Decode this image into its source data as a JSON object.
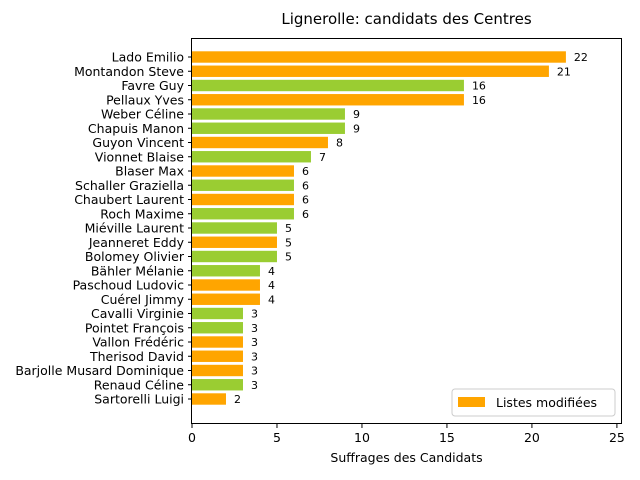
{
  "chart_data": {
    "type": "bar",
    "orientation": "horizontal",
    "title": "Lignerolle: candidats des Centres",
    "xlabel": "Suffrages des Candidats",
    "ylabel": "",
    "xlim": [
      0,
      25.3
    ],
    "xticks": [
      "0",
      "5",
      "10",
      "15",
      "20",
      "25"
    ],
    "xtick_values": [
      0,
      5,
      10,
      15,
      20,
      25
    ],
    "grid": false,
    "colors": {
      "modified": "#ffa500",
      "unmodified": "#9acd32"
    },
    "categories": [
      "Lado Emilio",
      "Montandon Steve",
      "Favre Guy",
      "Pellaux Yves",
      "Weber Céline",
      "Chapuis Manon",
      "Guyon Vincent",
      "Vionnet Blaise",
      "Blaser Max",
      "Schaller Graziella",
      "Chaubert Laurent",
      "Roch Maxime",
      "Miéville Laurent",
      "Jeanneret Eddy",
      "Bolomey Olivier",
      "Bähler Mélanie",
      "Paschoud Ludovic",
      "Cuérel Jimmy",
      "Cavalli Virginie",
      "Pointet François",
      "Vallon Frédéric",
      "Therisod David",
      "Barjolle Musard Dominique",
      "Renaud Céline",
      "Sartorelli Luigi"
    ],
    "values": [
      22,
      21,
      16,
      16,
      9,
      9,
      8,
      7,
      6,
      6,
      6,
      6,
      5,
      5,
      5,
      4,
      4,
      4,
      3,
      3,
      3,
      3,
      3,
      3,
      2
    ],
    "value_labels": [
      "22",
      "21",
      "16",
      "16",
      "9",
      "9",
      "8",
      "7",
      "6",
      "6",
      "6",
      "6",
      "5",
      "5",
      "5",
      "4",
      "4",
      "4",
      "3",
      "3",
      "3",
      "3",
      "3",
      "3",
      "2"
    ],
    "modified": [
      true,
      true,
      false,
      true,
      false,
      false,
      true,
      false,
      true,
      false,
      true,
      false,
      false,
      true,
      false,
      false,
      true,
      true,
      false,
      false,
      true,
      true,
      true,
      false,
      true
    ],
    "legend": {
      "label": "Listes modifiées",
      "position": "lower-right"
    }
  }
}
